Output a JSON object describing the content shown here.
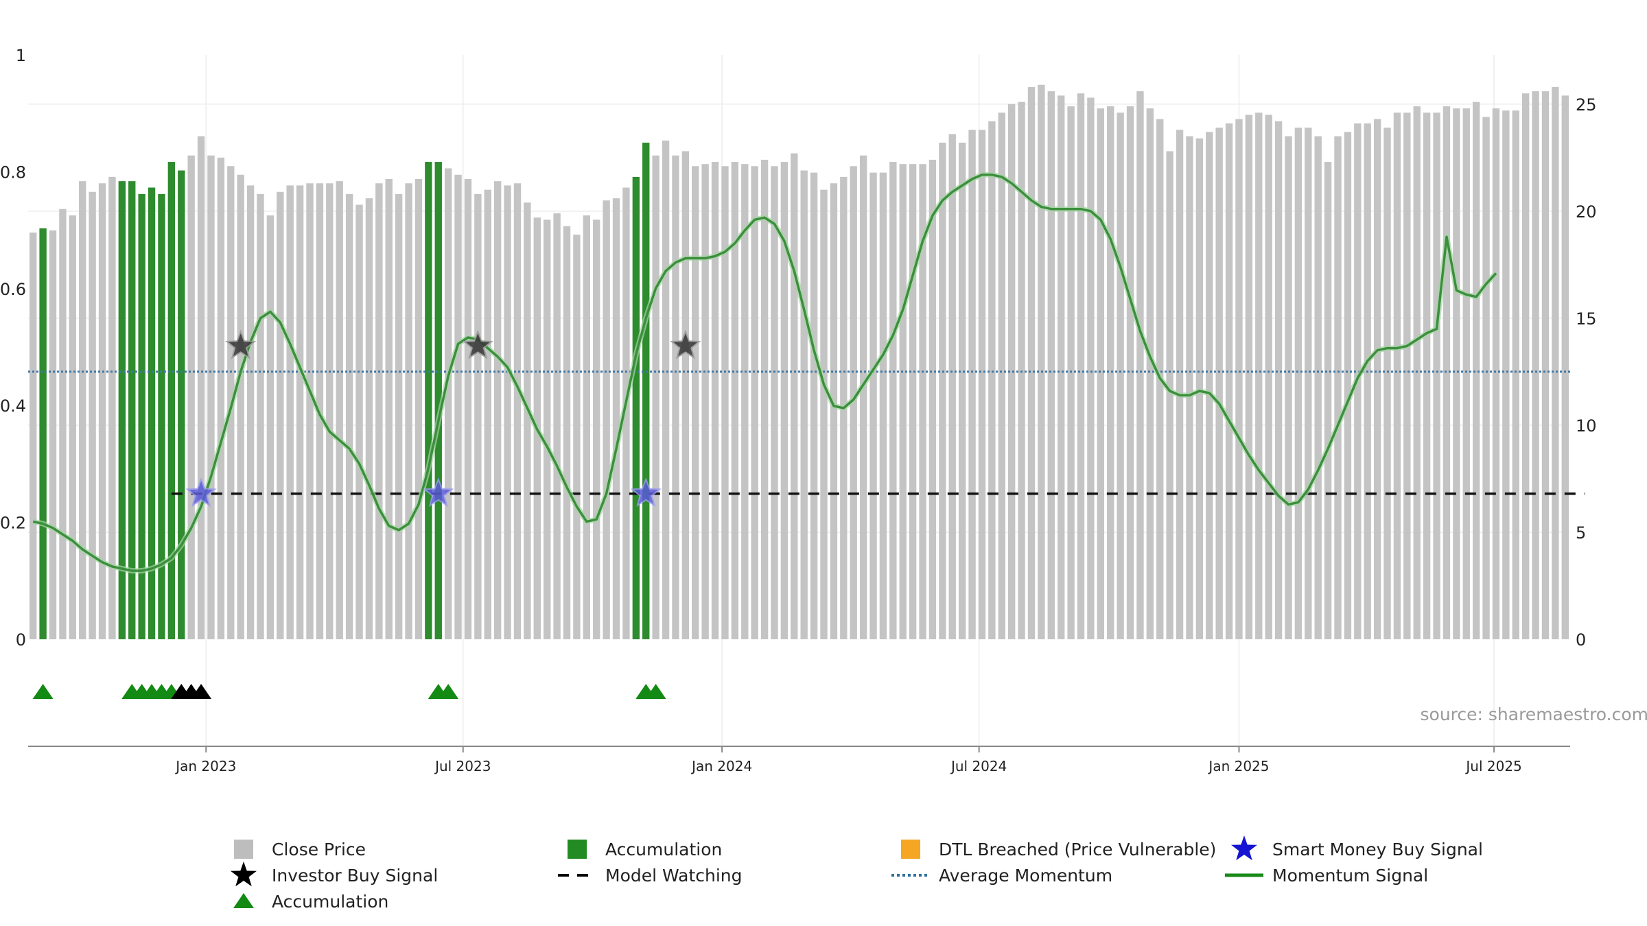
{
  "chart_data": {
    "type": "bar",
    "title": "",
    "xlabel": "",
    "ylabel": "",
    "source_text": "source: sharemaestro.com",
    "left_axis": {
      "ylim": [
        0,
        1
      ],
      "ticks": [
        "0",
        "0.2",
        "0.4",
        "0.6",
        "0.8",
        "1"
      ]
    },
    "right_axis": {
      "ylim": [
        0,
        27.3
      ],
      "ticks": [
        "0",
        "5",
        "10",
        "15",
        "20",
        "25"
      ]
    },
    "x_axis": {
      "ticks": [
        {
          "label": "Jan 2023",
          "index": 17.5
        },
        {
          "label": "Jul 2023",
          "index": 43.5
        },
        {
          "label": "Jan 2024",
          "index": 69.7
        },
        {
          "label": "Jul 2024",
          "index": 95.7
        },
        {
          "label": "Jan 2025",
          "index": 122.0
        },
        {
          "label": "Jul 2025",
          "index": 147.8
        }
      ]
    },
    "close_price": [
      19.0,
      19.2,
      19.1,
      20.1,
      19.8,
      21.4,
      20.9,
      21.3,
      21.6,
      21.4,
      21.4,
      20.8,
      21.1,
      20.8,
      22.3,
      21.9,
      22.6,
      23.5,
      22.6,
      22.5,
      22.1,
      21.7,
      21.2,
      20.8,
      19.8,
      20.9,
      21.2,
      21.2,
      21.3,
      21.3,
      21.3,
      21.4,
      20.8,
      20.3,
      20.6,
      21.3,
      21.5,
      20.8,
      21.3,
      21.5,
      22.3,
      22.3,
      22.0,
      21.7,
      21.5,
      20.8,
      21.0,
      21.4,
      21.2,
      21.3,
      20.4,
      19.7,
      19.6,
      19.9,
      19.3,
      18.9,
      19.8,
      19.6,
      20.5,
      20.6,
      21.1,
      21.6,
      23.2,
      22.6,
      23.3,
      22.6,
      22.8,
      22.1,
      22.2,
      22.3,
      22.1,
      22.3,
      22.2,
      22.1,
      22.4,
      22.1,
      22.3,
      22.7,
      21.9,
      21.8,
      21.0,
      21.3,
      21.6,
      22.1,
      22.6,
      21.8,
      21.8,
      22.3,
      22.2,
      22.2,
      22.2,
      22.4,
      23.2,
      23.6,
      23.2,
      23.8,
      23.8,
      24.2,
      24.6,
      25.0,
      25.1,
      25.8,
      25.9,
      25.6,
      25.4,
      24.9,
      25.5,
      25.3,
      24.8,
      24.9,
      24.6,
      24.9,
      25.6,
      24.8,
      24.3,
      22.8,
      23.8,
      23.5,
      23.4,
      23.7,
      23.9,
      24.1,
      24.3,
      24.5,
      24.6,
      24.5,
      24.2,
      23.5,
      23.9,
      23.9,
      23.5,
      22.3,
      23.5,
      23.7,
      24.1,
      24.1,
      24.3,
      23.9,
      24.6,
      24.6,
      24.9,
      24.6,
      24.6,
      24.9,
      24.8,
      24.8,
      25.1,
      24.4,
      24.8,
      24.7,
      24.7,
      25.5,
      25.6,
      25.6,
      25.8,
      25.4
    ],
    "accumulation_bars": [
      1,
      9,
      10,
      11,
      12,
      13,
      14,
      15,
      40,
      41,
      61,
      62
    ],
    "momentum_signal": [
      5.5,
      5.4,
      5.2,
      4.9,
      4.6,
      4.2,
      3.9,
      3.6,
      3.4,
      3.3,
      3.2,
      3.2,
      3.3,
      3.5,
      3.8,
      4.4,
      5.2,
      6.2,
      7.6,
      9.2,
      10.8,
      12.5,
      13.9,
      15.0,
      15.3,
      14.8,
      13.8,
      12.7,
      11.6,
      10.5,
      9.7,
      9.3,
      8.9,
      8.2,
      7.2,
      6.1,
      5.3,
      5.1,
      5.4,
      6.3,
      8.0,
      10.2,
      12.3,
      13.8,
      14.1,
      14.0,
      13.6,
      13.2,
      12.7,
      11.8,
      10.8,
      9.8,
      9.0,
      8.1,
      7.1,
      6.2,
      5.5,
      5.6,
      6.8,
      8.9,
      11.1,
      13.3,
      15.0,
      16.4,
      17.2,
      17.6,
      17.8,
      17.8,
      17.8,
      17.9,
      18.1,
      18.5,
      19.1,
      19.6,
      19.7,
      19.4,
      18.6,
      17.2,
      15.4,
      13.5,
      11.9,
      10.9,
      10.8,
      11.2,
      11.9,
      12.6,
      13.3,
      14.2,
      15.4,
      17.0,
      18.6,
      19.8,
      20.5,
      20.9,
      21.2,
      21.5,
      21.7,
      21.7,
      21.6,
      21.3,
      20.9,
      20.5,
      20.2,
      20.1,
      20.1,
      20.1,
      20.1,
      20.0,
      19.6,
      18.7,
      17.4,
      15.9,
      14.4,
      13.2,
      12.2,
      11.6,
      11.4,
      11.4,
      11.6,
      11.5,
      11.0,
      10.2,
      9.4,
      8.6,
      7.9,
      7.3,
      6.7,
      6.3,
      6.4,
      7.0,
      7.9,
      8.9,
      10.0,
      11.1,
      12.2,
      13.0,
      13.5,
      13.6,
      13.6,
      13.7,
      14.0,
      14.3,
      14.5,
      18.8,
      16.3,
      16.1,
      16.0,
      16.6,
      17.1
    ],
    "average_momentum": 12.5,
    "model_watching_level": 6.8,
    "model_watching_range": [
      14,
      157
    ],
    "smart_money_buy_signals": [
      {
        "index": 17,
        "value": 6.8
      },
      {
        "index": 41,
        "value": 6.8
      },
      {
        "index": 62,
        "value": 6.8
      }
    ],
    "investor_buy_signals": [
      {
        "index": 21,
        "value": 13.7
      },
      {
        "index": 45,
        "value": 13.7
      },
      {
        "index": 66,
        "value": 13.7
      }
    ],
    "accumulation_triangles_green": [
      1,
      10,
      11,
      12,
      13,
      14,
      41,
      42,
      62,
      63
    ],
    "accumulation_triangles_black": [
      15,
      16,
      17
    ],
    "legend": [
      {
        "label": "Close Price",
        "marker": "square",
        "color": "#bdbdbd"
      },
      {
        "label": "Accumulation",
        "marker": "square",
        "color": "#228b22"
      },
      {
        "label": "DTL Breached (Price Vulnerable)",
        "marker": "square",
        "color": "#f5a623"
      },
      {
        "label": "Smart Money Buy Signal",
        "marker": "star",
        "color": "#1414d2"
      },
      {
        "label": "Investor Buy Signal",
        "marker": "star",
        "color": "#000000"
      },
      {
        "label": "Model Watching",
        "marker": "dash",
        "color": "#000000"
      },
      {
        "label": "Average Momentum",
        "marker": "dot",
        "color": "#2e6f9e"
      },
      {
        "label": "Momentum Signal",
        "marker": "line",
        "color": "#1a8a1a"
      },
      {
        "label": "Accumulation",
        "marker": "triangle",
        "color": "#138a13"
      }
    ],
    "colors": {
      "close_bar": "#c4c4c4",
      "accum_bar": "#2e8b2e",
      "momentum": "#3c8f3c",
      "avg_line": "#3f79a8",
      "grid": "#ececec",
      "axis": "#888888"
    }
  }
}
